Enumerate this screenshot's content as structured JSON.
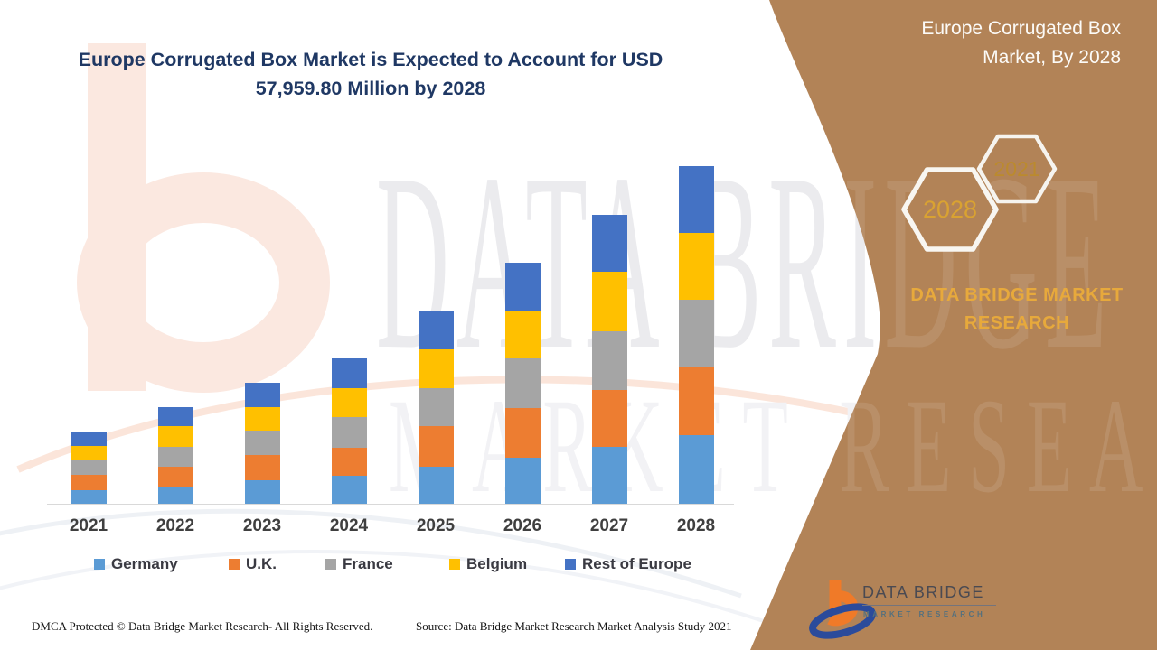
{
  "header": {
    "title": "Europe Corrugated Box Market is Expected to Account for USD 57,959.80 Million by 2028"
  },
  "side_panel": {
    "title": "Europe Corrugated Box Market, By 2028",
    "hexagon_front_label": "2028",
    "hexagon_back_label": "2021",
    "brand_text": "DATA BRIDGE MARKET RESEARCH",
    "logo_name": "DATA BRIDGE",
    "logo_subtitle": "MARKET RESEARCH",
    "colors": {
      "panel_brown": "#B28357",
      "gold_text": "#E7A93C",
      "front_hex_label": "#D9A232",
      "back_hex_label": "#BB8A2E"
    }
  },
  "watermark": {
    "line1": "DATA BRIDGE",
    "line2": "MARKET RESEARCH"
  },
  "footer": {
    "dmca": "DMCA Protected © Data Bridge Market Research- All Rights Reserved.",
    "source": "Source: Data Bridge Market Research Market Analysis Study 2021"
  },
  "chart_data": {
    "type": "bar",
    "stacked": true,
    "title": "Europe Corrugated Box Market is Expected to Account for USD 57,959.80 Million by 2028",
    "unit": "USD Million",
    "categories": [
      "2021",
      "2022",
      "2023",
      "2024",
      "2025",
      "2026",
      "2027",
      "2028"
    ],
    "series": [
      {
        "name": "Germany",
        "color": "#5B9BD5",
        "values": [
          2320,
          2940,
          4030,
          4800,
          6350,
          7900,
          9760,
          11780
        ]
      },
      {
        "name": "U.K.",
        "color": "#ED7D31",
        "values": [
          2630,
          3410,
          4340,
          4800,
          6970,
          8520,
          9760,
          11620
        ]
      },
      {
        "name": "France",
        "color": "#A5A5A5",
        "values": [
          2480,
          3410,
          4180,
          5270,
          6510,
          8520,
          10070,
          11620
        ]
      },
      {
        "name": "Belgium",
        "color": "#FFC000",
        "values": [
          2480,
          3560,
          4030,
          4960,
          6660,
          8210,
          10230,
          11470
        ]
      },
      {
        "name": "Rest of Europe",
        "color": "#4472C4",
        "values": [
          2320,
          3250,
          4180,
          5110,
          6660,
          8210,
          9760,
          11470
        ]
      }
    ],
    "totals_estimated": [
      12230,
      16570,
      20760,
      24940,
      33150,
      41360,
      49580,
      57960
    ],
    "labeled_value_2028": "USD 57,959.80 Million",
    "values_estimated_from_bar_heights": true,
    "y_axis": "hidden",
    "grid": "off",
    "legend_position": "bottom"
  }
}
